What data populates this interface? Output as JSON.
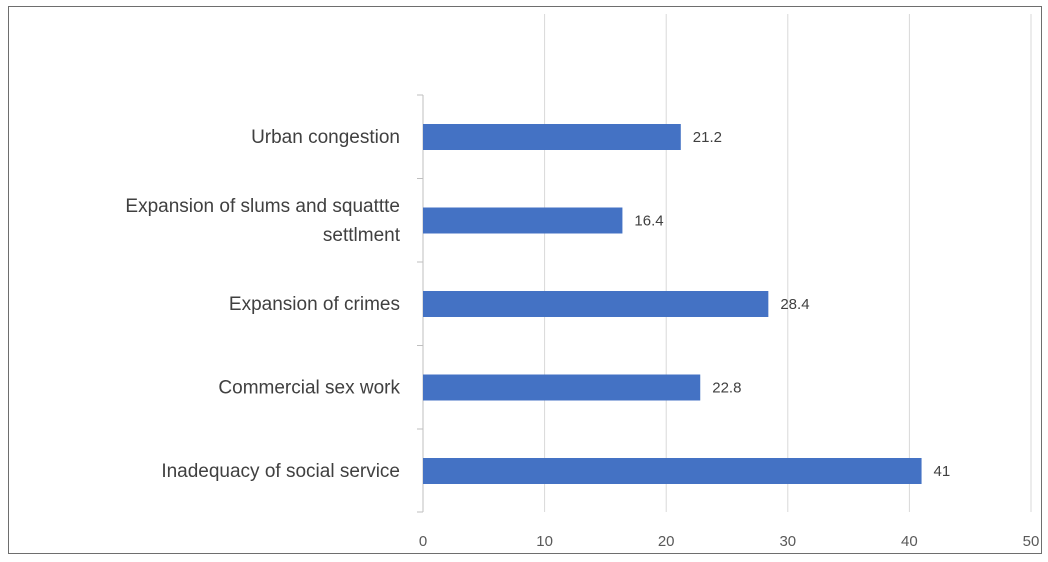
{
  "chart_data": {
    "type": "bar",
    "orientation": "horizontal",
    "categories": [
      "Urban congestion",
      "Expansion of slums and squattte settlment",
      "Expansion of crimes",
      "Commercial sex work",
      "Inadequacy of social service"
    ],
    "category_lines": [
      [
        "Urban congestion"
      ],
      [
        "Expansion of slums and squattte",
        "settlment"
      ],
      [
        "Expansion of crimes"
      ],
      [
        "Commercial sex work"
      ],
      [
        "Inadequacy of social service"
      ]
    ],
    "values": [
      21.2,
      16.4,
      28.4,
      22.8,
      41
    ],
    "value_labels": [
      "21.2",
      "16.4",
      "28.4",
      "22.8",
      "41"
    ],
    "xlim": [
      0,
      50
    ],
    "xticks": [
      0,
      10,
      20,
      30,
      40,
      50
    ],
    "xtick_labels": [
      "0",
      "10",
      "20",
      "30",
      "40",
      "50"
    ],
    "title": "",
    "xlabel": "",
    "ylabel": "",
    "grid": true,
    "legend": "none",
    "colors": {
      "bar": "#4472c4",
      "grid": "#d9d9d9",
      "axis": "#bfbfbf"
    }
  }
}
